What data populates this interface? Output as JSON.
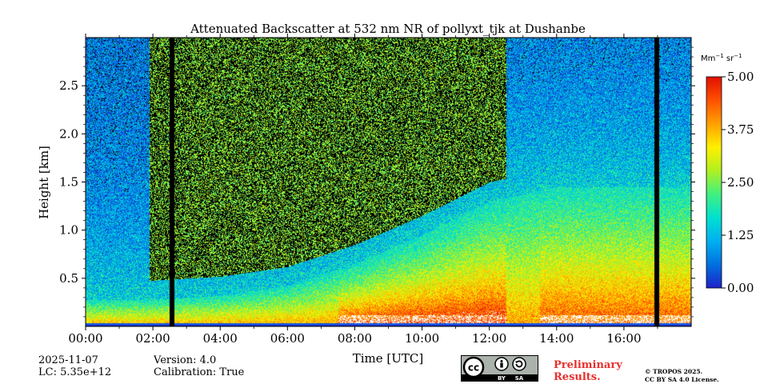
{
  "chart_data": {
    "type": "heatmap",
    "title": "Attenuated Backscatter at 532 nm NR of pollyxt_tjk at Dushanbe",
    "xlabel": "Time [UTC]",
    "ylabel": "Height [km]",
    "xlim_hours": [
      0,
      18
    ],
    "ylim_km": [
      0,
      3.0
    ],
    "x_ticks": [
      {
        "value": 0,
        "label": "00:00"
      },
      {
        "value": 2,
        "label": "02:00"
      },
      {
        "value": 4,
        "label": "04:00"
      },
      {
        "value": 6,
        "label": "06:00"
      },
      {
        "value": 8,
        "label": "08:00"
      },
      {
        "value": 10,
        "label": "10:00"
      },
      {
        "value": 12,
        "label": "12:00"
      },
      {
        "value": 14,
        "label": "14:00"
      },
      {
        "value": 16,
        "label": "16:00"
      }
    ],
    "y_ticks": [
      {
        "value": 0.5,
        "label": "0.5"
      },
      {
        "value": 1.0,
        "label": "1.0"
      },
      {
        "value": 1.5,
        "label": "1.5"
      },
      {
        "value": 2.0,
        "label": "2.0"
      },
      {
        "value": 2.5,
        "label": "2.5"
      }
    ],
    "colorbar": {
      "unit": "Mm",
      "unit_exp1": "−1",
      "unit_mid": " sr",
      "unit_exp2": "−1",
      "range": [
        0,
        5
      ],
      "ticks": [
        {
          "value": 0,
          "label": "0.00"
        },
        {
          "value": 1.25,
          "label": "1.25"
        },
        {
          "value": 2.5,
          "label": "2.50"
        },
        {
          "value": 3.75,
          "label": "3.75"
        },
        {
          "value": 5,
          "label": "5.00"
        }
      ],
      "colors": [
        "#1e22c8",
        "#0070e0",
        "#00b0f0",
        "#00e0d0",
        "#40f080",
        "#b0f020",
        "#fff000",
        "#ffa000",
        "#ff5000",
        "#e01000"
      ]
    },
    "no_data_periods_hours": [
      [
        2.48,
        2.62
      ],
      [
        16.9,
        17.03
      ]
    ],
    "boundary_layer_top_km": [
      {
        "t": 0,
        "h": 0.28
      },
      {
        "t": 2,
        "h": 0.28
      },
      {
        "t": 4,
        "h": 0.32
      },
      {
        "t": 6,
        "h": 0.42
      },
      {
        "t": 8,
        "h": 0.65
      },
      {
        "t": 10,
        "h": 0.95
      },
      {
        "t": 12,
        "h": 1.3
      },
      {
        "t": 14,
        "h": 1.45
      },
      {
        "t": 16,
        "h": 1.45
      },
      {
        "t": 18,
        "h": 1.45
      }
    ]
  },
  "info": {
    "date": "2025-11-07",
    "lc": "LC: 5.35e+12",
    "version": "Version: 4.0",
    "calibration": "Calibration: True"
  },
  "badge": {
    "cc": "cc",
    "by": "BY",
    "sa": "SA"
  },
  "preliminary": {
    "line1": "Preliminary",
    "line2": "Results."
  },
  "copyright": {
    "line1": "© TROPOS 2025.",
    "line2": "CC BY SA 4.0 License."
  }
}
